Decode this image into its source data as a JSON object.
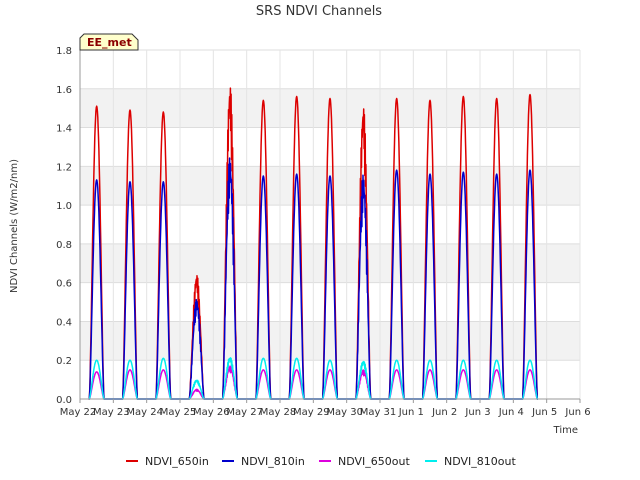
{
  "chart_data": {
    "type": "line",
    "title": "SRS NDVI Channels",
    "xlabel": "Time",
    "ylabel": "NDVI Channels (W/m2/nm)",
    "ylim": [
      0,
      1.8
    ],
    "yticks": [
      "0.0",
      "0.2",
      "0.4",
      "0.6",
      "0.8",
      "1.0",
      "1.2",
      "1.4",
      "1.6",
      "1.8"
    ],
    "xlim": [
      "2024-05-22",
      "2024-06-06"
    ],
    "xticks": [
      "May 22",
      "May 23",
      "May 24",
      "May 25",
      "May 26",
      "May 27",
      "May 28",
      "May 29",
      "May 30",
      "May 31",
      "Jun 1",
      "Jun 2",
      "Jun 3",
      "Jun 4",
      "Jun 5",
      "Jun 6"
    ],
    "grid": true,
    "badge": "EE_met",
    "legend_position": "bottom",
    "series_colors": [
      "#dd0000",
      "#0000cc",
      "#dd00dd",
      "#00eeee"
    ],
    "days": [
      "May 22",
      "May 23",
      "May 24",
      "May 25",
      "May 26",
      "May 27",
      "May 28",
      "May 29",
      "May 30",
      "May 31",
      "Jun 1",
      "Jun 2",
      "Jun 3",
      "Jun 4",
      "Jun 5"
    ],
    "daily_peak_date": [
      "2024-05-22",
      "2024-05-23",
      "2024-05-24",
      "2024-05-25",
      "2024-05-26",
      "2024-05-27",
      "2024-05-28",
      "2024-05-29",
      "2024-05-30",
      "2024-05-31",
      "2024-06-01",
      "2024-06-02",
      "2024-06-03",
      "2024-06-04",
      "2024-06-05"
    ],
    "series": [
      {
        "name": "NDVI_650in",
        "daily_peak": [
          1.51,
          1.49,
          1.48,
          0.65,
          1.64,
          1.54,
          1.56,
          1.55,
          1.53,
          1.55,
          1.54,
          1.56,
          1.55,
          1.57,
          0.0
        ]
      },
      {
        "name": "NDVI_810in",
        "daily_peak": [
          1.13,
          1.12,
          1.12,
          0.52,
          1.26,
          1.15,
          1.16,
          1.15,
          1.17,
          1.18,
          1.16,
          1.17,
          1.16,
          1.18,
          0.0
        ]
      },
      {
        "name": "NDVI_650out",
        "daily_peak": [
          0.14,
          0.15,
          0.15,
          0.05,
          0.17,
          0.15,
          0.15,
          0.15,
          0.15,
          0.15,
          0.15,
          0.15,
          0.15,
          0.15,
          0.0
        ]
      },
      {
        "name": "NDVI_810out",
        "daily_peak": [
          0.2,
          0.2,
          0.21,
          0.1,
          0.22,
          0.21,
          0.21,
          0.2,
          0.2,
          0.2,
          0.2,
          0.2,
          0.2,
          0.2,
          0.0
        ]
      }
    ]
  }
}
